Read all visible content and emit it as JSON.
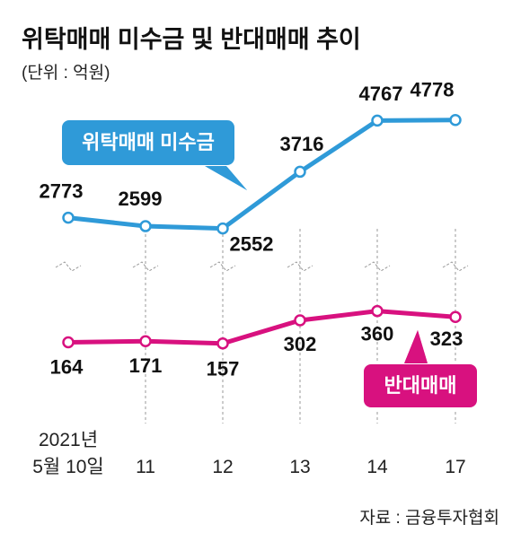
{
  "chart_data": {
    "type": "line",
    "title": "위탁매매 미수금 및 반대매매 추이",
    "subtitle": "(단위 : 억원)",
    "source": "자료 : 금융투자협회",
    "categories": [
      "2021년\n5월 10일",
      "11",
      "12",
      "13",
      "14",
      "17"
    ],
    "series": [
      {
        "name": "위탁매매 미수금",
        "color": "#2f9ad8",
        "values": [
          2773,
          2599,
          2552,
          3716,
          4767,
          4778
        ]
      },
      {
        "name": "반대매매",
        "color": "#d8117f",
        "axis": "y2",
        "values": [
          164,
          171,
          157,
          302,
          360,
          323
        ]
      }
    ],
    "ylim": [
      1900,
      5400
    ],
    "y2lim": [
      60,
      510
    ]
  }
}
